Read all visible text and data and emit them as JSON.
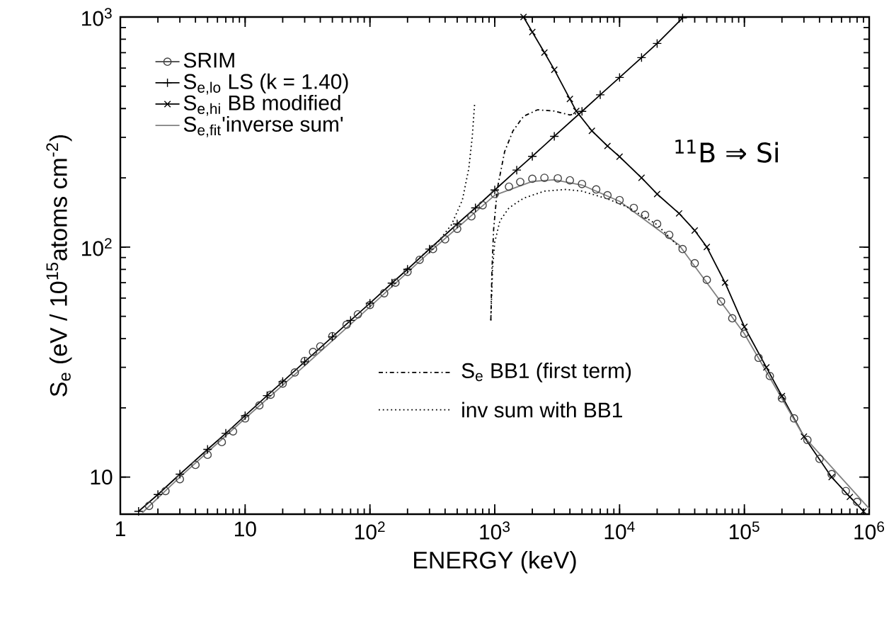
{
  "chart_data": {
    "type": "line",
    "xlabel": "ENERGY  (keV)",
    "ylabel": "S$_{e}$  (eV / 10$^{15}$atoms cm$^{-2}$)",
    "log": "xy",
    "xlim": [
      1,
      1000000
    ],
    "ylim": [
      6.9,
      1000
    ],
    "xticks": [
      1,
      10,
      {
        "value": 100,
        "label": "10$^{2}$"
      },
      {
        "value": 1000,
        "label": "10$^{3}$"
      },
      {
        "value": 10000,
        "label": "10$^{4}$"
      },
      {
        "value": 100000,
        "label": "10$^{5}$"
      },
      {
        "value": 1000000,
        "label": "10$^{6}$"
      }
    ],
    "yticks": [
      10,
      {
        "value": 100,
        "label": "10$^{2}$"
      },
      {
        "value": 1000,
        "label": "10$^{3}$"
      }
    ],
    "legend": "top left",
    "annotations": [
      "$^{11}$B ⇒ Si"
    ],
    "series": [
      {
        "name": "SRIM",
        "type": "scatter",
        "marker": "circle",
        "color": "#404040",
        "x": [
          1.7,
          2.3,
          3,
          4,
          5,
          6.5,
          8,
          10,
          13,
          16,
          20,
          25,
          30,
          35,
          40,
          50,
          65,
          80,
          100,
          130,
          160,
          200,
          250,
          320,
          400,
          500,
          650,
          800,
          1000,
          1300,
          1600,
          2000,
          2500,
          3200,
          4000,
          5000,
          6500,
          8000,
          10000,
          13000,
          16000,
          20000,
          25000,
          32000,
          40000,
          50000,
          65000,
          80000,
          100000,
          130000,
          160000,
          200000,
          250000,
          320000,
          400000,
          500000,
          650000,
          800000
        ],
        "values": [
          7.5,
          8.7,
          9.8,
          11.3,
          12.5,
          14.2,
          15.8,
          18,
          20.5,
          22.8,
          25.5,
          28.5,
          32,
          35,
          37,
          41,
          46,
          51,
          56,
          63,
          70,
          78,
          88,
          98,
          108,
          120,
          136,
          152,
          170,
          183,
          192,
          198,
          200,
          199,
          195,
          188,
          178,
          168,
          160,
          148,
          138,
          126,
          113,
          98,
          85,
          72,
          58,
          49,
          42,
          33,
          27.5,
          22,
          18,
          14.5,
          12,
          10.3,
          8.7,
          7.8
        ]
      },
      {
        "name": "S$_{e,lo}$ LS (k = 1.40)",
        "marker": "plus",
        "line_style": "solid",
        "color": "#000000",
        "x": [
          1.4,
          2,
          3,
          5,
          7,
          10,
          15,
          20,
          30,
          50,
          70,
          100,
          150,
          200,
          300,
          500,
          700,
          1000,
          1500,
          2000,
          3000,
          5000,
          7000,
          10000,
          15000,
          20000,
          32000
        ],
        "values": [
          7.1,
          8.4,
          10.3,
          13.2,
          15.5,
          18.5,
          22.6,
          26,
          31.7,
          40.7,
          48,
          57,
          69.7,
          80,
          98,
          126,
          148,
          177,
          216,
          248,
          303,
          389,
          459,
          546,
          666,
          767,
          990
        ]
      },
      {
        "name": "S$_{e,hi}$ BB modified",
        "marker": "cross",
        "line_style": "solid",
        "color": "#000000",
        "x": [
          1700,
          2000,
          2500,
          3000,
          4000,
          4500,
          6000,
          8000,
          10000,
          15000,
          20000,
          30000,
          40000,
          50000,
          70000,
          100000,
          150000,
          200000,
          300000,
          500000,
          700000,
          900000
        ],
        "values": [
          1000,
          860,
          700,
          590,
          440,
          390,
          320,
          275,
          247,
          200,
          170,
          140,
          118,
          100,
          70,
          45,
          30,
          22.5,
          15,
          10,
          8.2,
          7.1
        ]
      },
      {
        "name": "S$_{e,fit}$'inverse sum'",
        "marker": "none",
        "line_style": "solid",
        "color": "#808080",
        "x": [
          1.5,
          3,
          10,
          30,
          100,
          300,
          1000,
          2000,
          3000,
          5000,
          10000,
          30000,
          100000,
          300000,
          1000000
        ],
        "values": [
          7,
          10,
          18,
          30.5,
          55,
          95,
          168,
          193,
          196,
          186,
          158,
          102,
          42,
          15,
          7.3
        ]
      },
      {
        "name": "S$_{e}$ BB1 (first term)",
        "marker": "none",
        "line_style": "dashdot",
        "color": "#000000",
        "x": [
          930,
          950,
          980,
          1050,
          1200,
          1400,
          1700,
          2200,
          3000,
          4000,
          4500
        ],
        "values": [
          48,
          80,
          120,
          180,
          260,
          320,
          370,
          395,
          390,
          375,
          380
        ]
      },
      {
        "name": "inv sum with BB1",
        "marker": "none",
        "line_style": "dotted",
        "color": "#000000",
        "x": [
          250,
          350,
          450,
          550,
          620,
          660,
          690,
          800,
          930,
          960,
          1000,
          1100,
          1300,
          1700,
          2500,
          3700,
          5000,
          8000,
          12000,
          20000,
          30000
        ],
        "values": [
          90,
          105,
          125,
          160,
          220,
          300,
          420,
          null,
          48,
          80,
          105,
          130,
          148,
          163,
          175,
          178,
          175,
          162,
          148,
          125,
          100
        ]
      }
    ]
  }
}
